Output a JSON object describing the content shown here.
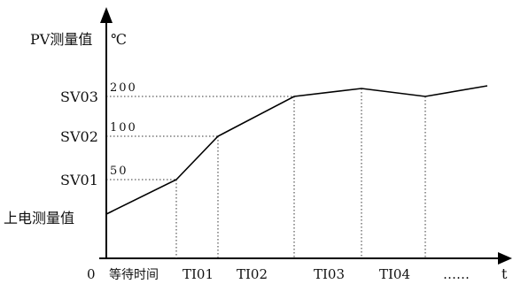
{
  "diagram": {
    "y_axis_label": "PV测量值",
    "unit": "℃",
    "x_axis_label": "t",
    "origin_label": "0",
    "y_levels": [
      {
        "name": "SV03",
        "value_label": "200"
      },
      {
        "name": "SV02",
        "value_label": "100"
      },
      {
        "name": "SV01",
        "value_label": "50"
      },
      {
        "name": "上电测量值",
        "value_label": ""
      }
    ],
    "x_segments": [
      "等待时间",
      "TI01",
      "TI02",
      "TI03",
      "TI04",
      "……"
    ]
  }
}
